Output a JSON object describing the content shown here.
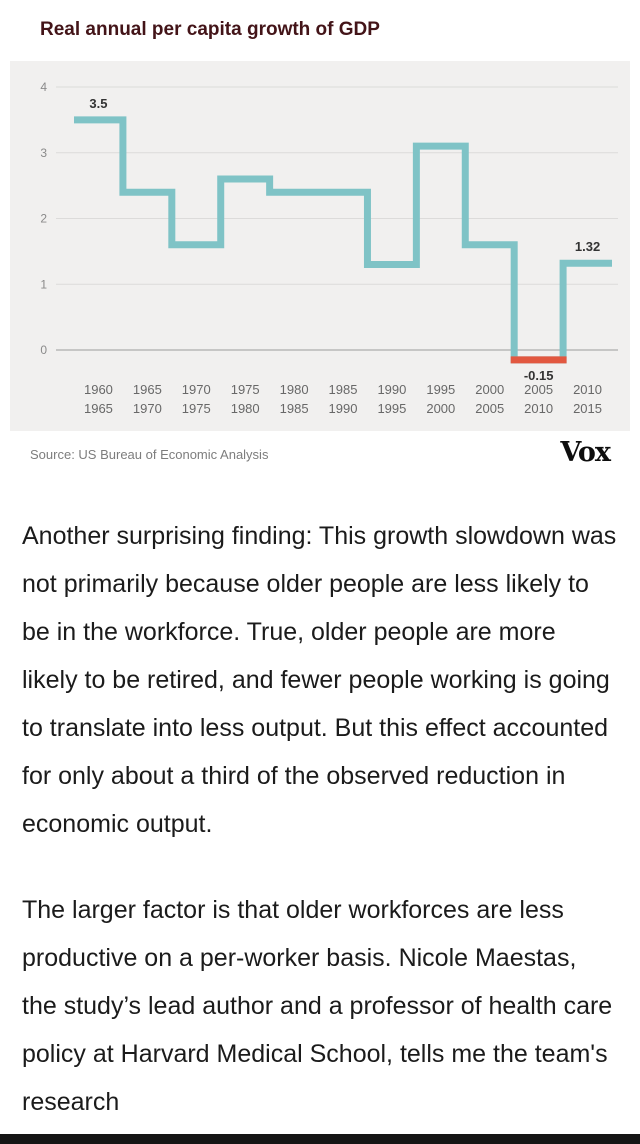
{
  "chart": {
    "title": "Real annual per capita growth of GDP",
    "source": "Source: US Bureau of Economic Analysis",
    "logo": "Vox"
  },
  "chart_data": {
    "type": "step",
    "title": "Real annual per capita growth of GDP",
    "categories": [
      [
        "1960",
        "1965"
      ],
      [
        "1965",
        "1970"
      ],
      [
        "1970",
        "1975"
      ],
      [
        "1975",
        "1980"
      ],
      [
        "1980",
        "1985"
      ],
      [
        "1985",
        "1990"
      ],
      [
        "1990",
        "1995"
      ],
      [
        "1995",
        "2000"
      ],
      [
        "2000",
        "2005"
      ],
      [
        "2005",
        "2010"
      ],
      [
        "2010",
        "2015"
      ]
    ],
    "values": [
      3.5,
      2.4,
      1.6,
      2.6,
      2.4,
      2.4,
      1.3,
      3.1,
      1.6,
      -0.15,
      1.32
    ],
    "yticks": [
      0,
      1,
      2,
      3,
      4
    ],
    "ylim": [
      -0.5,
      4
    ],
    "grid": true,
    "legend": false,
    "line_color": "#7fc3c6",
    "highlight_color": "#e25840",
    "highlight_index": 9,
    "annotations": [
      {
        "index": 0,
        "text": "3.5",
        "position": "above"
      },
      {
        "index": 9,
        "text": "-0.15",
        "position": "below"
      },
      {
        "index": 10,
        "text": "1.32",
        "position": "above"
      }
    ],
    "xlabel": "",
    "ylabel": "",
    "source": "Source: US Bureau of Economic Analysis"
  },
  "article": {
    "paragraphs": [
      "Another surprising finding: This growth slowdown was not primarily because older people are less likely to be in the workforce. True, older people are more likely to be retired, and fewer people working is going to translate into less output. But this effect accounted for only about a third of the observed reduction in economic output.",
      "The larger factor is that older workforces are less productive on a per-worker basis. Nicole Maestas, the study’s lead author and a professor of health care policy at Harvard Medical School, tells me the team's research"
    ]
  }
}
